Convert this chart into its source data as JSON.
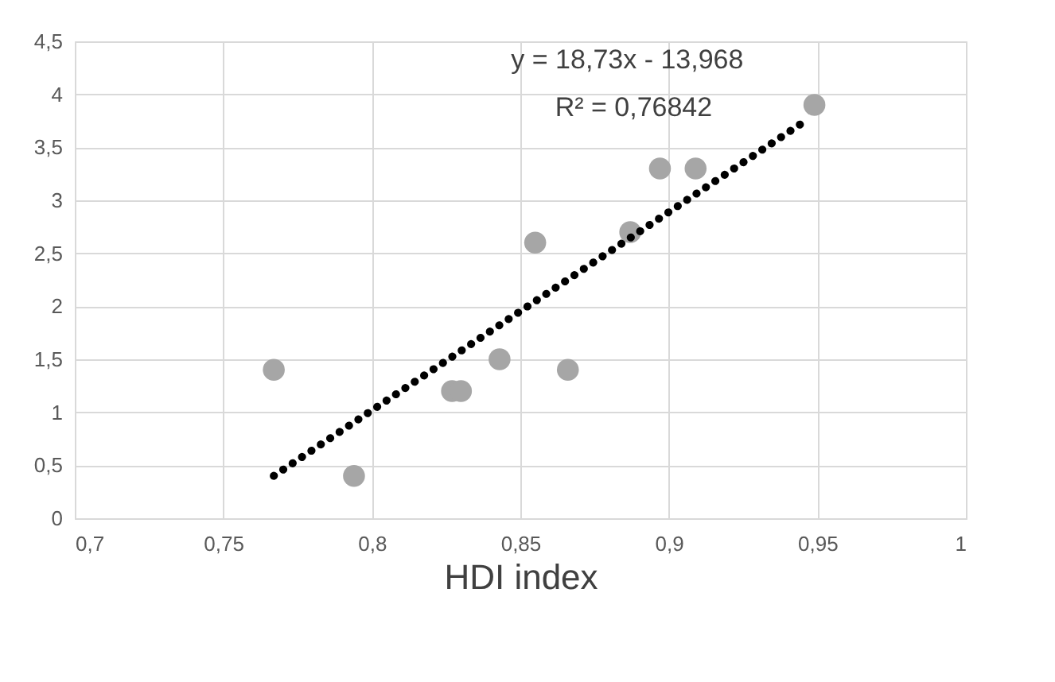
{
  "chart_data": {
    "type": "scatter",
    "xlabel": "HDI index",
    "annotations": [
      "y = 18,73x - 13,968",
      "R² = 0,76842"
    ],
    "series": [
      {
        "color": "#a6a6a6",
        "marker": "circle",
        "x": [
          0.767,
          0.794,
          0.827,
          0.83,
          0.843,
          0.855,
          0.866,
          0.887,
          0.897,
          0.909,
          0.949
        ],
        "values": [
          1.4,
          0.4,
          1.2,
          1.2,
          1.5,
          2.6,
          1.4,
          2.7,
          3.3,
          3.3,
          3.9
        ]
      },
      {
        "type": "line",
        "color": "#000000",
        "line_style": "dotted",
        "x": [
          0.767,
          0.946
        ],
        "values": [
          0.4,
          3.75
        ]
      }
    ],
    "xlim": [
      0.7,
      1
    ],
    "ylim": [
      0,
      4.5
    ],
    "xticks": [
      {
        "value": 0.7,
        "label": "0,7"
      },
      {
        "value": 0.75,
        "label": "0,75"
      },
      {
        "value": 0.8,
        "label": "0,8"
      },
      {
        "value": 0.85,
        "label": "0,85"
      },
      {
        "value": 0.9,
        "label": "0,9"
      },
      {
        "value": 0.95,
        "label": "0,95"
      },
      1
    ],
    "yticks": [
      0,
      {
        "value": 0.5,
        "label": "0,5"
      },
      1,
      {
        "value": 1.5,
        "label": "1,5"
      },
      2,
      {
        "value": 2.5,
        "label": "2,5"
      },
      3,
      {
        "value": 3.5,
        "label": "3,5"
      },
      4,
      {
        "value": 4.5,
        "label": "4,5"
      }
    ],
    "grid": true
  }
}
